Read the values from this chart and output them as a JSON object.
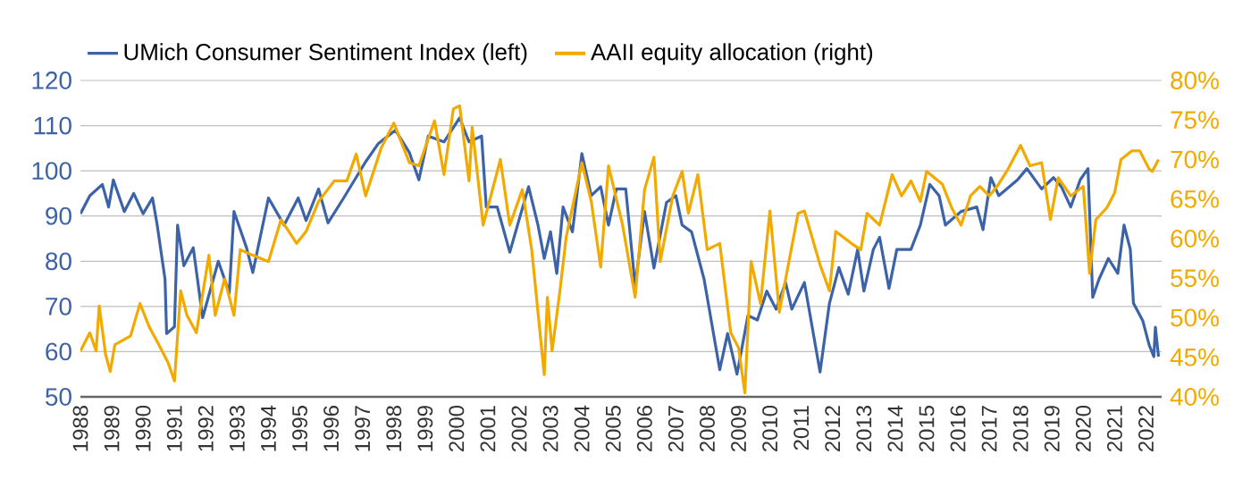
{
  "chart_data": {
    "type": "line",
    "xlim": [
      1988,
      2022.5
    ],
    "xticks": [
      1988,
      1989,
      1990,
      1991,
      1992,
      1993,
      1994,
      1995,
      1996,
      1997,
      1998,
      1999,
      2000,
      2001,
      2002,
      2003,
      2004,
      2005,
      2006,
      2007,
      2008,
      2009,
      2010,
      2011,
      2012,
      2013,
      2014,
      2015,
      2016,
      2017,
      2018,
      2019,
      2020,
      2021,
      2022
    ],
    "ylim": [
      50,
      120
    ],
    "yticks": [
      50,
      60,
      70,
      80,
      90,
      100,
      110,
      120
    ],
    "y2lim": [
      40,
      80
    ],
    "y2ticks": [
      {
        "value": 40,
        "label": "40%"
      },
      {
        "value": 45,
        "label": "45%"
      },
      {
        "value": 50,
        "label": "50%"
      },
      {
        "value": 55,
        "label": "55%"
      },
      {
        "value": 60,
        "label": "60%"
      },
      {
        "value": 65,
        "label": "65%"
      },
      {
        "value": 70,
        "label": "70%"
      },
      {
        "value": 75,
        "label": "75%"
      },
      {
        "value": 80,
        "label": "80%"
      }
    ],
    "grid": "y",
    "legend": "top left",
    "marker": "none",
    "line_style": "solid",
    "series": [
      {
        "name": "UMich Consumer Sentiment Index (left)",
        "color": "#3c62a8",
        "x": [
          1988.0,
          1988.3,
          1988.7,
          1988.9,
          1989.05,
          1989.4,
          1989.7,
          1990.0,
          1990.3,
          1990.45,
          1990.7,
          1990.75,
          1991.0,
          1991.1,
          1991.3,
          1991.6,
          1991.9,
          1992.4,
          1992.75,
          1992.9,
          1993.3,
          1993.5,
          1994.0,
          1994.5,
          1994.95,
          1995.2,
          1995.6,
          1995.9,
          1996.4,
          1997.1,
          1997.5,
          1998.05,
          1998.5,
          1998.8,
          1999.1,
          1999.6,
          2000.1,
          2000.4,
          2000.8,
          2000.95,
          2001.3,
          2001.7,
          2002.3,
          2002.6,
          2002.8,
          2003.0,
          2003.2,
          2003.4,
          2003.7,
          2004.0,
          2004.3,
          2004.6,
          2004.85,
          2005.1,
          2005.4,
          2005.7,
          2006.0,
          2006.3,
          2006.7,
          2007.0,
          2007.2,
          2007.5,
          2007.9,
          2008.4,
          2008.65,
          2008.95,
          2009.3,
          2009.6,
          2009.9,
          2010.2,
          2010.5,
          2010.7,
          2011.1,
          2011.6,
          2011.9,
          2012.2,
          2012.5,
          2012.8,
          2013.0,
          2013.3,
          2013.5,
          2013.8,
          2014.05,
          2014.5,
          2014.8,
          2015.1,
          2015.4,
          2015.6,
          2016.1,
          2016.6,
          2016.8,
          2017.05,
          2017.3,
          2017.9,
          2018.2,
          2018.67,
          2019.05,
          2019.3,
          2019.6,
          2019.9,
          2020.15,
          2020.3,
          2020.5,
          2020.8,
          2021.1,
          2021.3,
          2021.5,
          2021.6,
          2021.9,
          2022.1,
          2022.25,
          2022.3,
          2022.4
        ],
        "values": [
          90.5,
          94.5,
          97,
          92,
          98,
          91,
          95,
          90.5,
          94,
          88,
          76,
          64,
          65.5,
          88,
          79,
          83,
          67.5,
          80,
          73,
          91,
          83,
          77.5,
          94,
          88,
          94,
          89,
          96,
          88.5,
          94,
          102,
          106,
          109,
          104,
          98,
          107.7,
          106.4,
          111.7,
          106.4,
          107.7,
          92,
          92,
          82,
          96.5,
          88,
          80.6,
          86.5,
          77.3,
          92,
          86.5,
          103.8,
          94.5,
          96.5,
          88,
          96,
          96,
          74.6,
          91,
          78.5,
          93,
          94.5,
          88,
          86.5,
          76,
          56,
          64,
          55,
          68,
          67,
          73.4,
          69.4,
          75.3,
          69.4,
          75.3,
          55.5,
          70.7,
          78.6,
          72.7,
          82.6,
          73.4,
          82.6,
          85.3,
          74,
          82.6,
          82.6,
          88,
          97,
          94.5,
          88,
          91,
          92,
          87,
          98.5,
          94.5,
          98,
          100.5,
          96,
          98.5,
          96.5,
          92,
          98,
          100.5,
          72,
          76,
          80.6,
          77.3,
          88,
          82.6,
          70.7,
          66.8,
          61.5,
          58.9,
          65.4,
          58.9
        ]
      },
      {
        "name": "AAII equity allocation (right)",
        "color": "#f2a900",
        "axis": "y2",
        "x": [
          1988.0,
          1988.3,
          1988.5,
          1988.6,
          1988.8,
          1988.95,
          1989.1,
          1989.6,
          1989.9,
          1990.2,
          1990.5,
          1990.8,
          1991.0,
          1991.2,
          1991.4,
          1991.7,
          1992.1,
          1992.3,
          1992.6,
          1992.9,
          1993.1,
          1993.5,
          1994.0,
          1994.4,
          1994.9,
          1995.2,
          1995.6,
          1996.1,
          1996.5,
          1996.8,
          1997.1,
          1997.6,
          1998.0,
          1998.5,
          1998.8,
          1999.3,
          1999.6,
          1999.9,
          2000.1,
          2000.4,
          2000.5,
          2000.85,
          2001.4,
          2001.7,
          2002.1,
          2002.4,
          2002.8,
          2002.9,
          2003.05,
          2003.3,
          2003.5,
          2004.0,
          2004.3,
          2004.6,
          2004.85,
          2005.3,
          2005.7,
          2006.0,
          2006.3,
          2006.5,
          2006.9,
          2007.2,
          2007.4,
          2007.7,
          2008.0,
          2008.4,
          2008.75,
          2009.0,
          2009.2,
          2009.4,
          2009.7,
          2010.0,
          2010.3,
          2010.9,
          2011.1,
          2011.6,
          2011.9,
          2012.1,
          2012.6,
          2012.9,
          2013.1,
          2013.5,
          2013.9,
          2014.2,
          2014.5,
          2014.8,
          2015.0,
          2015.5,
          2015.8,
          2016.1,
          2016.4,
          2016.7,
          2017.0,
          2017.3,
          2017.6,
          2018.0,
          2018.3,
          2018.67,
          2018.95,
          2019.2,
          2019.6,
          2020.0,
          2020.2,
          2020.4,
          2020.75,
          2021.0,
          2021.2,
          2021.55,
          2021.8,
          2022.1,
          2022.2,
          2022.4
        ],
        "values": [
          45.8,
          48.1,
          45.8,
          51.5,
          45.4,
          43.2,
          46.6,
          47.7,
          51.8,
          48.8,
          46.6,
          44.3,
          42,
          53.4,
          50.3,
          48.1,
          57.9,
          50.3,
          54.9,
          50.3,
          58.6,
          57.9,
          57.1,
          62.4,
          59.4,
          60.9,
          64.7,
          67.3,
          67.3,
          70.7,
          65.4,
          71.5,
          74.6,
          69.6,
          69.2,
          74.9,
          68.1,
          76.4,
          76.8,
          67.3,
          74.1,
          61.7,
          70,
          61.7,
          66.2,
          58.6,
          42.8,
          52.6,
          45.8,
          53.4,
          60.2,
          69.6,
          64.7,
          56.4,
          69.2,
          61.7,
          52.6,
          66.2,
          70.3,
          57.1,
          65.4,
          68.5,
          63.2,
          68.1,
          58.6,
          59.4,
          48.1,
          46.2,
          40.5,
          57.1,
          51.8,
          63.5,
          50.7,
          63.2,
          63.5,
          56.7,
          53.4,
          60.9,
          59.4,
          58.6,
          63.2,
          61.7,
          68.1,
          65.4,
          67.3,
          64.7,
          68.5,
          66.9,
          63.9,
          61.7,
          65.4,
          66.6,
          65.4,
          66.9,
          68.8,
          71.8,
          69.2,
          69.6,
          62.4,
          67.7,
          65.4,
          66.6,
          55.6,
          62.4,
          63.9,
          65.8,
          70,
          71.1,
          71.1,
          68.8,
          68.5,
          70
        ]
      }
    ]
  }
}
